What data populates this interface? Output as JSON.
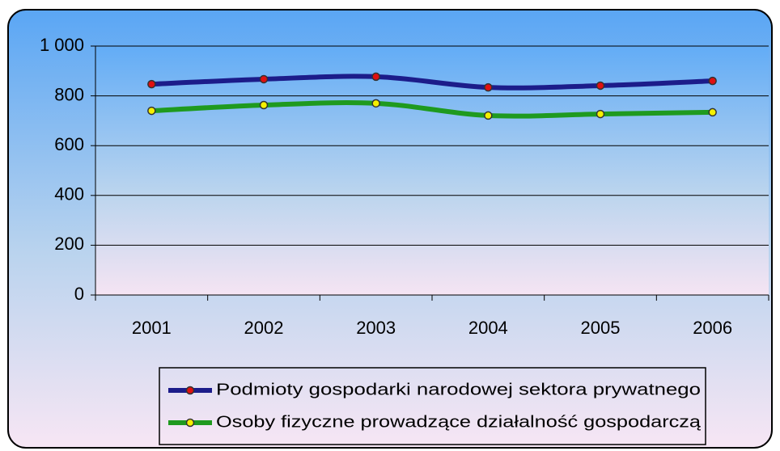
{
  "chart_data": {
    "type": "line",
    "categories": [
      "2001",
      "2002",
      "2003",
      "2004",
      "2005",
      "2006"
    ],
    "series": [
      {
        "name": "Podmioty gospodarki narodowej sektora prywatnego",
        "color": "#1c1c8a",
        "marker_color": "#e01010",
        "values": [
          847,
          867,
          877,
          834,
          841,
          860
        ]
      },
      {
        "name": "Osoby fizyczne prowadzące działalność gospodarczą",
        "color": "#1f9a1f",
        "marker_color": "#f5f000",
        "values": [
          740,
          763,
          770,
          721,
          727,
          734
        ]
      }
    ],
    "ylim": [
      0,
      1000
    ],
    "yticks": [
      0,
      200,
      400,
      600,
      800,
      {
        "value": 1000,
        "label": "1 000"
      }
    ],
    "grid": true,
    "legend": "bottom"
  }
}
